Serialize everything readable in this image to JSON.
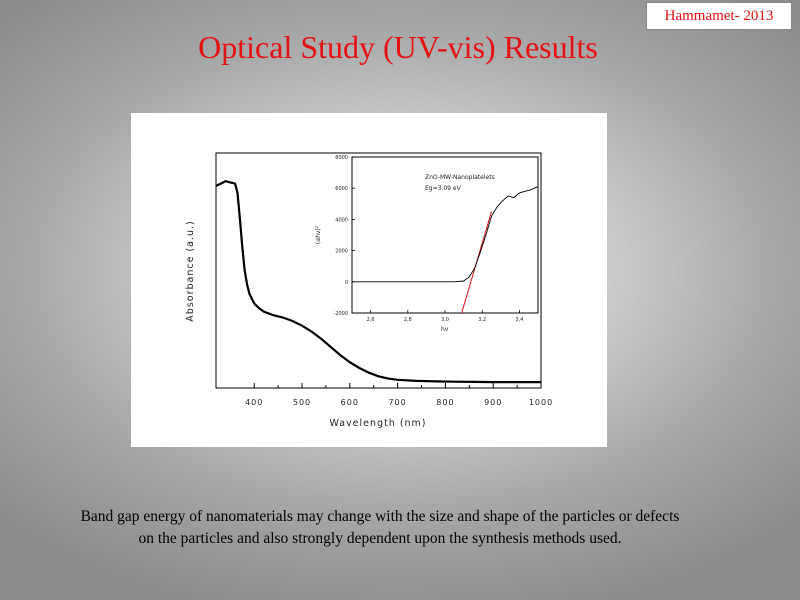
{
  "slide": {
    "badge": "Hammamet- 2013",
    "title": "Optical Study (UV-vis) Results",
    "caption_line1": "Band gap energy of nanomaterials may change with the size and shape of the particles or defects",
    "caption_line2": "on the particles and also strongly dependent upon the synthesis methods used."
  },
  "colors": {
    "title": "#e51010",
    "fit_line": "#d01010",
    "curve": "#000000"
  },
  "chart_data": [
    {
      "type": "line",
      "xlabel": "Wavelength (nm)",
      "ylabel": "Absorbance (a.u.)",
      "xlim": [
        320,
        1000
      ],
      "ylim": [
        0,
        1
      ],
      "xticks": [
        "400",
        "500",
        "600",
        "700",
        "800",
        "900",
        "1000"
      ],
      "yticks": [],
      "series": [
        {
          "x": [
            320,
            330,
            340,
            350,
            360,
            365,
            370,
            375,
            380,
            385,
            390,
            400,
            410,
            420,
            440,
            460,
            480,
            500,
            520,
            540,
            560,
            580,
            600,
            620,
            640,
            660,
            680,
            700,
            740,
            780,
            820,
            860,
            900,
            950,
            1000
          ],
          "y": [
            0.86,
            0.87,
            0.88,
            0.875,
            0.87,
            0.83,
            0.72,
            0.6,
            0.5,
            0.44,
            0.4,
            0.36,
            0.34,
            0.325,
            0.31,
            0.3,
            0.285,
            0.265,
            0.24,
            0.21,
            0.175,
            0.14,
            0.11,
            0.085,
            0.065,
            0.05,
            0.04,
            0.035,
            0.03,
            0.028,
            0.027,
            0.026,
            0.025,
            0.025,
            0.025
          ]
        }
      ]
    },
    {
      "type": "line",
      "title": "ZnO-MW-Nanoplatelets",
      "annotation": "Eg=3.09 eV",
      "xlabel": "hν",
      "ylabel": "(αhν)²",
      "xlim": [
        2.5,
        3.5
      ],
      "ylim": [
        -2000,
        8000
      ],
      "xticks": [
        "2,6",
        "2,8",
        "3,0",
        "3,2",
        "3,4"
      ],
      "yticks": [
        "-2000",
        "0",
        "2000",
        "4000",
        "6000",
        "8000"
      ],
      "series": [
        {
          "x": [
            2.5,
            2.7,
            2.9,
            3.05,
            3.1,
            3.13,
            3.16,
            3.19,
            3.22,
            3.25,
            3.28,
            3.31,
            3.34,
            3.37,
            3.4,
            3.43,
            3.46,
            3.5
          ],
          "y": [
            0,
            0,
            0,
            0,
            50,
            300,
            900,
            1900,
            3000,
            4200,
            4800,
            5200,
            5500,
            5400,
            5700,
            5800,
            5900,
            6100
          ]
        }
      ],
      "fit_line": {
        "x": [
          3.09,
          3.25
        ],
        "y": [
          -2000,
          4500
        ]
      }
    }
  ]
}
